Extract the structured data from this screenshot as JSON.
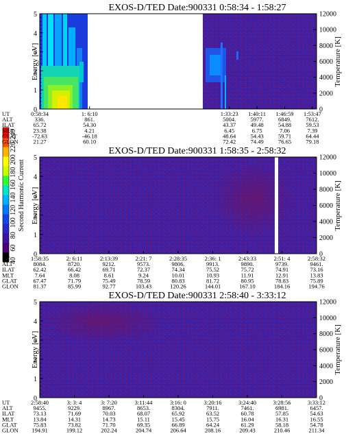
{
  "colorbar": {
    "label": "Second Harmonic Current",
    "ticks": [
      "40",
      "60",
      "80",
      "100",
      "120",
      "140",
      "160",
      "180",
      "200",
      "220",
      "240"
    ],
    "colors": [
      "#000000",
      "#4b0078",
      "#3c14a0",
      "#2828c8",
      "#1446e6",
      "#0078ff",
      "#00b4ff",
      "#00e6c8",
      "#32ff32",
      "#c8ff00",
      "#ffff00",
      "#ffb400",
      "#ff5000",
      "#ff0000"
    ]
  },
  "chart_data": [
    {
      "type": "heatmap",
      "title": "EXOS-D/TED   Date:900331   0:58:34 - 1:58:27",
      "ylabel": "Energy [eV]",
      "y2label": "Temperature [K]",
      "ylim": [
        0,
        5
      ],
      "y2lim": [
        0,
        12000
      ],
      "yticks": [
        "0",
        "1",
        "2",
        "3",
        "4",
        "5"
      ],
      "y2ticks": [
        "0",
        "2000",
        "4000",
        "6000",
        "8000",
        "10000",
        "12000"
      ],
      "data_gaps": [
        [
          0.22,
          0.685
        ]
      ],
      "table": {
        "labels": [
          "UT",
          "ALT",
          "ILAT",
          "MLT",
          "GLAT",
          "GLON"
        ],
        "columns": [
          {
            "pos": 0.0,
            "values": [
              "0:58:34",
              "336.",
              "65.72",
              "23.38",
              "-72.63",
              "21.27"
            ]
          },
          {
            "pos": 0.18,
            "values": [
              "1: 6:10",
              "861.",
              "54.30",
              "4.21",
              "-46.18",
              "60.10"
            ]
          },
          {
            "pos": 0.685,
            "values": [
              "1:33:23",
              "5004.",
              "43.37",
              "6.45",
              "48.64",
              "72.42"
            ]
          },
          {
            "pos": 0.785,
            "values": [
              "1:40:11",
              "5977.",
              "49.48",
              "6.75",
              "54.43",
              "74.49"
            ]
          },
          {
            "pos": 0.885,
            "values": [
              "1:46:59",
              "6849.",
              "54.88",
              "7.06",
              "59.71",
              "76.65"
            ]
          },
          {
            "pos": 0.985,
            "values": [
              "1:53:47",
              "7612.",
              "59.53",
              "7.39",
              "64.44",
              "79.18"
            ]
          }
        ]
      }
    },
    {
      "type": "heatmap",
      "title": "EXOS-D/TED   Date:900331   1:58:35 - 2:58:32",
      "ylabel": "Energy [eV]",
      "y2label": "Temperature [K]",
      "ylim": [
        0,
        5
      ],
      "y2lim": [
        0,
        12000
      ],
      "yticks": [
        "0",
        "1",
        "2",
        "3",
        "4",
        "5"
      ],
      "y2ticks": [
        "0",
        "2000",
        "4000",
        "6000",
        "8000",
        "10000",
        "12000"
      ],
      "data_gaps": [
        [
          0.902,
          0.912
        ]
      ],
      "table": {
        "labels": [
          "UT",
          "ALT",
          "ILAT",
          "MLT",
          "GLAT",
          "GLON"
        ],
        "columns": [
          {
            "pos": 0.0,
            "values": [
              "1:58:35",
              "8084.",
              "62.42",
              "7.64",
              "67.47",
              "81.37"
            ]
          },
          {
            "pos": 0.125,
            "values": [
              "2: 6:11",
              "8720.",
              "66.42",
              "8.08",
              "71.79",
              "85.99"
            ]
          },
          {
            "pos": 0.25,
            "values": [
              "2:13:39",
              "9212.",
              "69.71",
              "8.61",
              "75.49",
              "92.77"
            ]
          },
          {
            "pos": 0.375,
            "values": [
              "2:21: 7",
              "9573.",
              "72.37",
              "9.24",
              "78.59",
              "103.43"
            ]
          },
          {
            "pos": 0.5,
            "values": [
              "2:28:35",
              "9806.",
              "74.34",
              "10.01",
              "80.83",
              "120.26"
            ]
          },
          {
            "pos": 0.625,
            "values": [
              "2:36: 1",
              "9913.",
              "75.52",
              "10.93",
              "81.72",
              "144.01"
            ]
          },
          {
            "pos": 0.75,
            "values": [
              "2:43:33",
              "9890.",
              "75.72",
              "11.91",
              "80.95",
              "167.10"
            ]
          },
          {
            "pos": 0.875,
            "values": [
              "2:51: 4",
              "9739.",
              "74.91",
              "12.91",
              "78.83",
              "184.16"
            ]
          },
          {
            "pos": 1.0,
            "values": [
              "2:58:32",
              "9461.",
              "73.16",
              "13.83",
              "75.89",
              "194.76"
            ]
          }
        ]
      }
    },
    {
      "type": "heatmap",
      "title": "EXOS-D/TED   Date:900331   2:58:40 - 3:33:12",
      "ylabel": "Energy [eV]",
      "y2label": "Temperature [K]",
      "ylim": [
        0,
        5
      ],
      "y2lim": [
        0,
        12000
      ],
      "yticks": [
        "0",
        "1",
        "2",
        "3",
        "4",
        "5"
      ],
      "y2ticks": [
        "0",
        "2000",
        "4000",
        "6000",
        "8000",
        "10000",
        "12000"
      ],
      "data_gaps": [],
      "table": {
        "labels": [
          "UT",
          "ALT",
          "ILAT",
          "MLT",
          "GLAT",
          "GLON"
        ],
        "columns": [
          {
            "pos": 0.0,
            "values": [
              "2:58:40",
              "9455.",
              "73.13",
              "13.84",
              "75.83",
              "194.91"
            ]
          },
          {
            "pos": 0.125,
            "values": [
              "3: 3: 4",
              "9229.",
              "71.69",
              "14.31",
              "73.82",
              "199.12"
            ]
          },
          {
            "pos": 0.25,
            "values": [
              "3: 7:20",
              "8967.",
              "70.03",
              "14.73",
              "71.70",
              "202.24"
            ]
          },
          {
            "pos": 0.375,
            "values": [
              "3:11:44",
              "8653.",
              "68.07",
              "15.11",
              "69.35",
              "204.74"
            ]
          },
          {
            "pos": 0.5,
            "values": [
              "3:16: 0",
              "8304.",
              "65.92",
              "15.45",
              "66.89",
              "206.64"
            ]
          },
          {
            "pos": 0.625,
            "values": [
              "3:20:16",
              "7911.",
              "63.52",
              "15.75",
              "64.24",
              "208.16"
            ]
          },
          {
            "pos": 0.75,
            "values": [
              "3:24:40",
              "7461.",
              "60.78",
              "16.04",
              "61.29",
              "209.43"
            ]
          },
          {
            "pos": 0.875,
            "values": [
              "3:28:56",
              "6981.",
              "57.85",
              "16.31",
              "58.18",
              "210.46"
            ]
          },
          {
            "pos": 1.0,
            "values": [
              "3:33:12",
              "6457.",
              "54.63",
              "16.55",
              "54.78",
              "211.34"
            ]
          }
        ]
      }
    }
  ]
}
